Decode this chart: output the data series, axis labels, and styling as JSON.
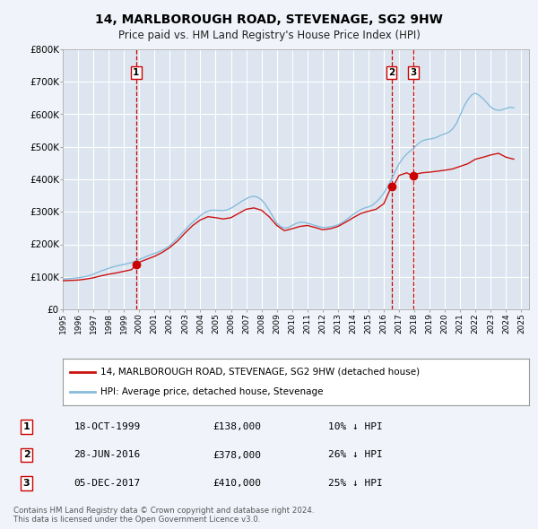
{
  "title": "14, MARLBOROUGH ROAD, STEVENAGE, SG2 9HW",
  "subtitle": "Price paid vs. HM Land Registry's House Price Index (HPI)",
  "background_color": "#f0f4fa",
  "plot_bg_color": "#dde6f0",
  "grid_color": "#ffffff",
  "hpi_color": "#88bbdd",
  "price_color": "#cc1111",
  "sale_marker_color": "#cc0000",
  "ylim": [
    0,
    800000
  ],
  "yticks": [
    0,
    100000,
    200000,
    300000,
    400000,
    500000,
    600000,
    700000,
    800000
  ],
  "ytick_labels": [
    "£0",
    "£100K",
    "£200K",
    "£300K",
    "£400K",
    "£500K",
    "£600K",
    "£700K",
    "£800K"
  ],
  "xlim_start": 1995.0,
  "xlim_end": 2025.5,
  "sale_dates": [
    1999.8,
    2016.5,
    2017.92
  ],
  "sale_prices": [
    138000,
    378000,
    410000
  ],
  "sale_labels": [
    "1",
    "2",
    "3"
  ],
  "legend_line1": "14, MARLBOROUGH ROAD, STEVENAGE, SG2 9HW (detached house)",
  "legend_line2": "HPI: Average price, detached house, Stevenage",
  "table_rows": [
    [
      "1",
      "18-OCT-1999",
      "£138,000",
      "10% ↓ HPI"
    ],
    [
      "2",
      "28-JUN-2016",
      "£378,000",
      "26% ↓ HPI"
    ],
    [
      "3",
      "05-DEC-2017",
      "£410,000",
      "25% ↓ HPI"
    ]
  ],
  "footnote": "Contains HM Land Registry data © Crown copyright and database right 2024.\nThis data is licensed under the Open Government Licence v3.0.",
  "hpi_data_x": [
    1995.0,
    1995.25,
    1995.5,
    1995.75,
    1996.0,
    1996.25,
    1996.5,
    1996.75,
    1997.0,
    1997.25,
    1997.5,
    1997.75,
    1998.0,
    1998.25,
    1998.5,
    1998.75,
    1999.0,
    1999.25,
    1999.5,
    1999.75,
    2000.0,
    2000.25,
    2000.5,
    2000.75,
    2001.0,
    2001.25,
    2001.5,
    2001.75,
    2002.0,
    2002.25,
    2002.5,
    2002.75,
    2003.0,
    2003.25,
    2003.5,
    2003.75,
    2004.0,
    2004.25,
    2004.5,
    2004.75,
    2005.0,
    2005.25,
    2005.5,
    2005.75,
    2006.0,
    2006.25,
    2006.5,
    2006.75,
    2007.0,
    2007.25,
    2007.5,
    2007.75,
    2008.0,
    2008.25,
    2008.5,
    2008.75,
    2009.0,
    2009.25,
    2009.5,
    2009.75,
    2010.0,
    2010.25,
    2010.5,
    2010.75,
    2011.0,
    2011.25,
    2011.5,
    2011.75,
    2012.0,
    2012.25,
    2012.5,
    2012.75,
    2013.0,
    2013.25,
    2013.5,
    2013.75,
    2014.0,
    2014.25,
    2014.5,
    2014.75,
    2015.0,
    2015.25,
    2015.5,
    2015.75,
    2016.0,
    2016.25,
    2016.5,
    2016.75,
    2017.0,
    2017.25,
    2017.5,
    2017.75,
    2018.0,
    2018.25,
    2018.5,
    2018.75,
    2019.0,
    2019.25,
    2019.5,
    2019.75,
    2020.0,
    2020.25,
    2020.5,
    2020.75,
    2021.0,
    2021.25,
    2021.5,
    2021.75,
    2022.0,
    2022.25,
    2022.5,
    2022.75,
    2023.0,
    2023.25,
    2023.5,
    2023.75,
    2024.0,
    2024.25,
    2024.5
  ],
  "hpi_data_y": [
    93000,
    94000,
    95000,
    96000,
    97000,
    99000,
    101000,
    104000,
    108000,
    113000,
    118000,
    122000,
    126000,
    130000,
    133000,
    136000,
    138000,
    141000,
    144000,
    148000,
    153000,
    158000,
    163000,
    168000,
    172000,
    176000,
    182000,
    188000,
    196000,
    207000,
    219000,
    232000,
    244000,
    257000,
    268000,
    278000,
    288000,
    297000,
    302000,
    305000,
    305000,
    304000,
    304000,
    306000,
    311000,
    318000,
    326000,
    334000,
    340000,
    346000,
    348000,
    345000,
    337000,
    323000,
    305000,
    285000,
    265000,
    255000,
    250000,
    252000,
    258000,
    264000,
    268000,
    268000,
    265000,
    262000,
    258000,
    255000,
    252000,
    252000,
    254000,
    256000,
    260000,
    266000,
    274000,
    283000,
    292000,
    300000,
    307000,
    312000,
    315000,
    320000,
    330000,
    342000,
    358000,
    378000,
    400000,
    425000,
    448000,
    465000,
    478000,
    488000,
    498000,
    510000,
    518000,
    522000,
    524000,
    526000,
    530000,
    536000,
    540000,
    545000,
    555000,
    572000,
    598000,
    625000,
    645000,
    660000,
    665000,
    658000,
    648000,
    635000,
    622000,
    615000,
    612000,
    614000,
    618000,
    622000,
    620000
  ],
  "price_data_x": [
    1995.0,
    1995.5,
    1996.0,
    1996.5,
    1997.0,
    1997.5,
    1998.0,
    1998.5,
    1999.0,
    1999.5,
    1999.8,
    2000.0,
    2000.5,
    2001.0,
    2001.5,
    2002.0,
    2002.5,
    2003.0,
    2003.5,
    2004.0,
    2004.5,
    2005.0,
    2005.5,
    2006.0,
    2006.5,
    2007.0,
    2007.5,
    2008.0,
    2008.5,
    2009.0,
    2009.5,
    2010.0,
    2010.5,
    2011.0,
    2011.5,
    2012.0,
    2012.5,
    2013.0,
    2013.5,
    2014.0,
    2014.5,
    2015.0,
    2015.5,
    2016.0,
    2016.5,
    2016.75,
    2017.0,
    2017.5,
    2017.92,
    2018.0,
    2018.5,
    2019.0,
    2019.5,
    2020.0,
    2020.5,
    2021.0,
    2021.5,
    2022.0,
    2022.5,
    2023.0,
    2023.5,
    2024.0,
    2024.5
  ],
  "price_data_y": [
    88000,
    89000,
    90000,
    93000,
    97000,
    103000,
    108000,
    112000,
    117000,
    122000,
    138000,
    145000,
    154000,
    163000,
    175000,
    190000,
    210000,
    235000,
    258000,
    275000,
    285000,
    282000,
    278000,
    282000,
    295000,
    308000,
    312000,
    305000,
    285000,
    258000,
    242000,
    248000,
    255000,
    258000,
    252000,
    245000,
    248000,
    255000,
    268000,
    282000,
    295000,
    302000,
    308000,
    325000,
    378000,
    390000,
    412000,
    420000,
    410000,
    415000,
    420000,
    422000,
    425000,
    428000,
    432000,
    440000,
    448000,
    462000,
    468000,
    475000,
    480000,
    468000,
    462000
  ]
}
